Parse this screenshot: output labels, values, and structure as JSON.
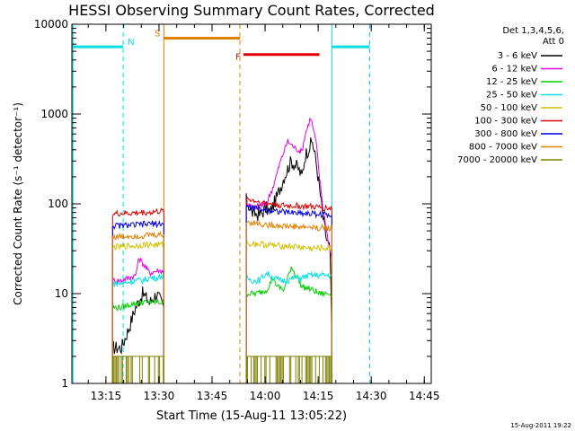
{
  "chart_data": {
    "type": "line",
    "title": "HESSI Observing Summary Count Rates, Corrected",
    "xlabel": "Start Time (15-Aug-11 13:05:22)",
    "ylabel": "Corrected Count Rate (s⁻¹ detector⁻¹)",
    "yscale": "log",
    "xlim_minutes_after_1305_22": [
      0,
      101.6
    ],
    "ylim": [
      1,
      10000
    ],
    "x_ticks": [
      {
        "label": "13:15",
        "t": 9.63
      },
      {
        "label": "13:30",
        "t": 24.63
      },
      {
        "label": "13:45",
        "t": 39.63
      },
      {
        "label": "14:00",
        "t": 54.63
      },
      {
        "label": "14:15",
        "t": 69.63
      },
      {
        "label": "14:30",
        "t": 84.63
      },
      {
        "label": "14:45",
        "t": 99.63
      }
    ],
    "y_ticks": [
      {
        "label": "1",
        "v": 1
      },
      {
        "label": "10",
        "v": 10
      },
      {
        "label": "100",
        "v": 100
      },
      {
        "label": "1000",
        "v": 1000
      },
      {
        "label": "10000",
        "v": 10000
      }
    ],
    "legend": {
      "placement": "right",
      "header": [
        "Det 1,3,4,5,6,",
        "Att 0"
      ],
      "entries": [
        {
          "label": "3 - 6 keV",
          "color": "#000000"
        },
        {
          "label": "6 - 12 keV",
          "color": "#e000e0"
        },
        {
          "label": "12 - 25 keV",
          "color": "#00d000"
        },
        {
          "label": "25 - 50 keV",
          "color": "#00e0e0"
        },
        {
          "label": "50 - 100 keV",
          "color": "#d0c000"
        },
        {
          "label": "100 - 300 keV",
          "color": "#e00000"
        },
        {
          "label": "300 - 800 keV",
          "color": "#0000e0"
        },
        {
          "label": "800 - 7000 keV",
          "color": "#e08000"
        },
        {
          "label": "7000 - 20000 keV",
          "color": "#808000"
        }
      ]
    },
    "observing_flags": [
      {
        "label": "N",
        "color": "#00e0e0",
        "value": 5600,
        "ranges": [
          [
            0,
            14.5
          ],
          [
            73.5,
            84.2
          ]
        ]
      },
      {
        "label": "S",
        "color": "#e08000",
        "value": 7000,
        "ranges": [
          [
            26,
            47.5
          ]
        ]
      },
      {
        "label": "F",
        "color": "#e00000",
        "value": 4600,
        "ranges": [
          [
            48.5,
            70
          ]
        ]
      }
    ],
    "vertical_markers": [
      {
        "t": 0.3,
        "color": "#00e0e0",
        "dashed": false
      },
      {
        "t": 14.5,
        "color": "#00e0e0",
        "dashed": true
      },
      {
        "t": 26.0,
        "color": "#e08000",
        "dashed": false
      },
      {
        "t": 47.5,
        "color": "#e08000",
        "dashed": true
      },
      {
        "t": 73.5,
        "color": "#00e0e0",
        "dashed": false
      },
      {
        "t": 84.2,
        "color": "#00e0e0",
        "dashed": true
      }
    ],
    "segments": [
      [
        11.5,
        26.0
      ],
      [
        49.3,
        73.5
      ]
    ],
    "series": [
      {
        "name": "3 - 6 keV",
        "color": "#000000",
        "seg1": [
          [
            11.5,
            2.5
          ],
          [
            14,
            2.5
          ],
          [
            16,
            4
          ],
          [
            18,
            7
          ],
          [
            20,
            10
          ],
          [
            22,
            8
          ],
          [
            24,
            10
          ],
          [
            26,
            7
          ]
        ],
        "seg2": [
          [
            49.3,
            110
          ],
          [
            51,
            80
          ],
          [
            53,
            75
          ],
          [
            55,
            90
          ],
          [
            56,
            80
          ],
          [
            58,
            120
          ],
          [
            60,
            200
          ],
          [
            62,
            300
          ],
          [
            64,
            250
          ],
          [
            65,
            200
          ],
          [
            66,
            350
          ],
          [
            68,
            500
          ],
          [
            69,
            300
          ],
          [
            70,
            150
          ],
          [
            71,
            70
          ],
          [
            72,
            40
          ],
          [
            73,
            30
          ],
          [
            73.5,
            3
          ]
        ]
      },
      {
        "name": "6 - 12 keV",
        "color": "#e000e0",
        "seg1": [
          [
            11.5,
            14
          ],
          [
            14,
            14
          ],
          [
            16,
            15
          ],
          [
            18,
            16
          ],
          [
            19,
            25
          ],
          [
            20,
            22
          ],
          [
            22,
            17
          ],
          [
            24,
            18
          ],
          [
            26,
            18
          ]
        ],
        "seg2": [
          [
            49.3,
            105
          ],
          [
            51,
            90
          ],
          [
            53,
            95
          ],
          [
            55,
            100
          ],
          [
            57,
            160
          ],
          [
            59,
            300
          ],
          [
            61,
            500
          ],
          [
            63,
            420
          ],
          [
            65,
            380
          ],
          [
            66,
            600
          ],
          [
            67.5,
            920
          ],
          [
            69,
            500
          ],
          [
            70,
            200
          ],
          [
            71,
            90
          ],
          [
            72,
            50
          ],
          [
            73,
            30
          ],
          [
            73.5,
            25
          ]
        ]
      },
      {
        "name": "12 - 25 keV",
        "color": "#00d000",
        "seg1": [
          [
            11.5,
            7
          ],
          [
            14,
            7
          ],
          [
            16,
            7.5
          ],
          [
            18,
            7.8
          ],
          [
            20,
            8
          ],
          [
            22,
            8
          ],
          [
            24,
            8
          ],
          [
            26,
            8
          ]
        ],
        "seg2": [
          [
            49.3,
            10
          ],
          [
            52,
            10
          ],
          [
            55,
            11
          ],
          [
            57,
            15
          ],
          [
            58,
            12
          ],
          [
            60,
            11
          ],
          [
            62,
            20
          ],
          [
            63,
            17
          ],
          [
            65,
            12
          ],
          [
            68,
            11
          ],
          [
            70,
            10
          ],
          [
            73.5,
            10
          ]
        ]
      },
      {
        "name": "25 - 50 keV",
        "color": "#00e0e0",
        "seg1": [
          [
            11.5,
            13
          ],
          [
            14,
            13
          ],
          [
            16,
            13.5
          ],
          [
            18,
            14
          ],
          [
            20,
            14
          ],
          [
            22,
            15
          ],
          [
            24,
            15
          ],
          [
            26,
            16
          ]
        ],
        "seg2": [
          [
            49.3,
            15
          ],
          [
            51,
            14
          ],
          [
            53,
            14
          ],
          [
            55,
            17
          ],
          [
            57,
            15
          ],
          [
            59,
            14
          ],
          [
            61,
            14
          ],
          [
            63,
            15
          ],
          [
            65,
            15
          ],
          [
            67,
            16
          ],
          [
            69,
            16
          ],
          [
            71,
            16
          ],
          [
            73.5,
            16
          ]
        ]
      },
      {
        "name": "50 - 100 keV",
        "color": "#d0c000",
        "seg1": [
          [
            11.5,
            33
          ],
          [
            14,
            33
          ],
          [
            16,
            34
          ],
          [
            18,
            34
          ],
          [
            20,
            35
          ],
          [
            22,
            35
          ],
          [
            24,
            35
          ],
          [
            26,
            35
          ]
        ],
        "seg2": [
          [
            49.3,
            36
          ],
          [
            52,
            36
          ],
          [
            55,
            35
          ],
          [
            58,
            34
          ],
          [
            61,
            34
          ],
          [
            64,
            33
          ],
          [
            67,
            32
          ],
          [
            70,
            32
          ],
          [
            73.5,
            32
          ]
        ]
      },
      {
        "name": "100 - 300 keV",
        "color": "#e00000",
        "seg1": [
          [
            11.5,
            77
          ],
          [
            14,
            78
          ],
          [
            16,
            78
          ],
          [
            18,
            79
          ],
          [
            20,
            80
          ],
          [
            22,
            80
          ],
          [
            24,
            82
          ],
          [
            26,
            82
          ]
        ],
        "seg2": [
          [
            49.3,
            115
          ],
          [
            51,
            110
          ],
          [
            53,
            105
          ],
          [
            55,
            100
          ],
          [
            57,
            100
          ],
          [
            59,
            96
          ],
          [
            61,
            95
          ],
          [
            63,
            95
          ],
          [
            65,
            94
          ],
          [
            67,
            93
          ],
          [
            69,
            92
          ],
          [
            71,
            90
          ],
          [
            73.5,
            90
          ]
        ]
      },
      {
        "name": "300 - 800 keV",
        "color": "#0000e0",
        "seg1": [
          [
            11.5,
            57
          ],
          [
            14,
            57
          ],
          [
            16,
            58
          ],
          [
            18,
            58
          ],
          [
            20,
            59
          ],
          [
            22,
            60
          ],
          [
            24,
            60
          ],
          [
            26,
            60
          ]
        ],
        "seg2": [
          [
            49.3,
            93
          ],
          [
            51,
            90
          ],
          [
            53,
            88
          ],
          [
            55,
            85
          ],
          [
            57,
            84
          ],
          [
            59,
            82
          ],
          [
            61,
            80
          ],
          [
            63,
            80
          ],
          [
            65,
            79
          ],
          [
            67,
            78
          ],
          [
            69,
            77
          ],
          [
            71,
            76
          ],
          [
            73.5,
            76
          ]
        ]
      },
      {
        "name": "800 - 7000 keV",
        "color": "#e08000",
        "seg1": [
          [
            11.5,
            43
          ],
          [
            14,
            43
          ],
          [
            16,
            44
          ],
          [
            18,
            44
          ],
          [
            20,
            44
          ],
          [
            22,
            45
          ],
          [
            24,
            45
          ],
          [
            26,
            45
          ]
        ],
        "seg2": [
          [
            49.3,
            63
          ],
          [
            51,
            62
          ],
          [
            53,
            60
          ],
          [
            55,
            58
          ],
          [
            57,
            58
          ],
          [
            59,
            57
          ],
          [
            61,
            56
          ],
          [
            63,
            56
          ],
          [
            65,
            55
          ],
          [
            67,
            55
          ],
          [
            69,
            54
          ],
          [
            71,
            54
          ],
          [
            73.5,
            54
          ]
        ]
      },
      {
        "name": "7000 - 20000 keV",
        "color": "#808000",
        "seg1": [
          [
            11.5,
            2
          ],
          [
            26,
            2
          ]
        ],
        "seg2": [
          [
            49.3,
            2
          ],
          [
            73.5,
            2
          ]
        ]
      }
    ],
    "footer_timestamp": "15-Aug-2011 19:22"
  }
}
